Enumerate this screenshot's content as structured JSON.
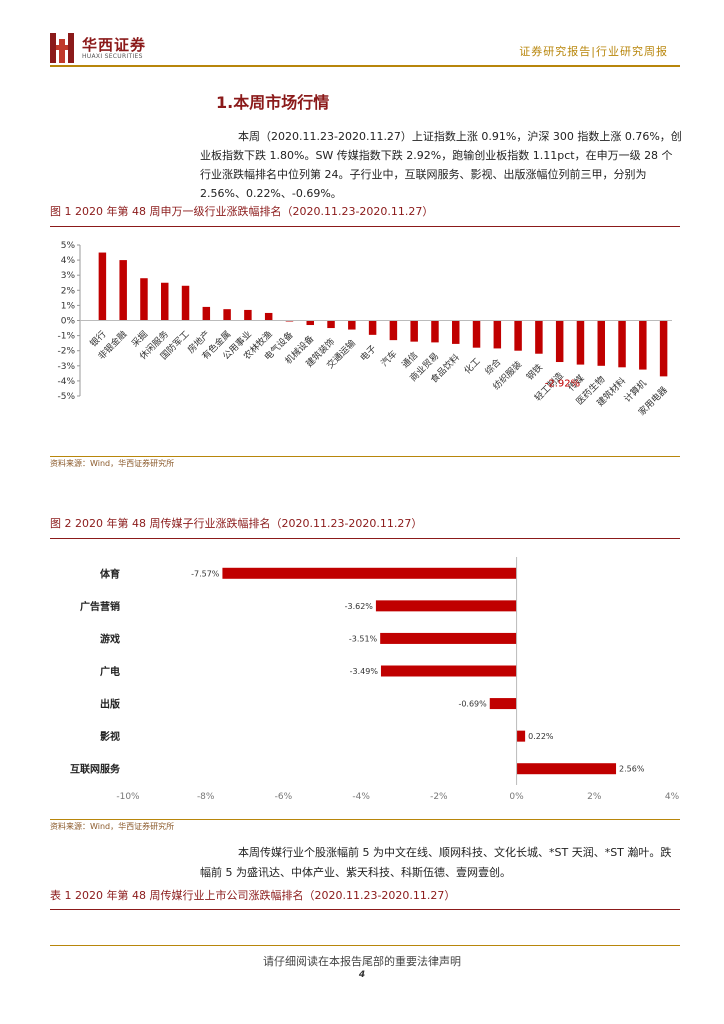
{
  "header": {
    "logo_cn": "华西证券",
    "logo_en": "HUAXI SECURITIES",
    "report_type": "证券研究报告|行业研究周报"
  },
  "section": {
    "title": "1.本周市场行情"
  },
  "intro": "本周（2020.11.23-2020.11.27）上证指数上涨 0.91%，沪深 300 指数上涨 0.76%，创业板指数下跌 1.80%。SW 传媒指数下跌 2.92%，跑输创业板指数 1.11pct，在申万一级 28 个行业涨跌幅排名中位列第 24。子行业中，互联网服务、影视、出版涨幅位列前三甲，分别为 2.56%、0.22%、-0.69%。",
  "figure1": {
    "title": "图 1 2020 年第 48 周申万一级行业涨跌幅排名（2020.11.23-2020.11.27）",
    "source": "资料来源：Wind，华西证券研究所"
  },
  "figure2": {
    "title": "图 2 2020 年第 48 周传媒子行业涨跌幅排名（2020.11.23-2020.11.27）",
    "source": "资料来源：Wind，华西证券研究所"
  },
  "para2": "本周传媒行业个股涨幅前 5 为中文在线、顺网科技、文化长城、*ST 天润、*ST 瀚叶。跌幅前 5 为盛讯达、中体产业、紫天科技、科斯伍德、壹网壹创。",
  "table1": {
    "title": "表 1 2020 年第 48 周传媒行业上市公司涨跌幅排名（2020.11.23-2020.11.27）"
  },
  "footer": {
    "note": "请仔细阅读在本报告尾部的重要法律声明",
    "page": "4"
  },
  "chart_data": [
    {
      "type": "bar",
      "title": "图 1 2020 年第 48 周申万一级行业涨跌幅排名（2020.11.23-2020.11.27）",
      "categories": [
        "银行",
        "非银金融",
        "采掘",
        "休闲服务",
        "国防军工",
        "房地产",
        "有色金属",
        "公用事业",
        "农林牧渔",
        "电气设备",
        "机械设备",
        "建筑装饰",
        "交通运输",
        "电子",
        "汽车",
        "通信",
        "商业贸易",
        "食品饮料",
        "化工",
        "综合",
        "纺织服装",
        "钢铁",
        "轻工制造",
        "传媒",
        "医药生物",
        "建筑材料",
        "计算机",
        "家用电器"
      ],
      "values": [
        4.5,
        4.0,
        2.8,
        2.5,
        2.3,
        0.9,
        0.75,
        0.7,
        0.5,
        -0.05,
        -0.3,
        -0.5,
        -0.6,
        -0.95,
        -1.3,
        -1.4,
        -1.45,
        -1.55,
        -1.8,
        -1.85,
        -2.0,
        -2.2,
        -2.75,
        -2.92,
        -3.0,
        -3.1,
        -3.25,
        -3.7
      ],
      "annotations": [
        {
          "category": "传媒",
          "label": "-2.92%"
        }
      ],
      "ylim": [
        -5,
        5
      ],
      "yticks": [
        "5%",
        "4%",
        "3%",
        "2%",
        "1%",
        "0%",
        "-1%",
        "-2%",
        "-3%",
        "-4%",
        "-5%"
      ],
      "color": "#C00000"
    },
    {
      "type": "bar",
      "orientation": "horizontal",
      "title": "图 2 2020 年第 48 周传媒子行业涨跌幅排名（2020.11.23-2020.11.27）",
      "categories": [
        "体育",
        "广告营销",
        "游戏",
        "广电",
        "出版",
        "影视",
        "互联网服务"
      ],
      "values": [
        -7.57,
        -3.62,
        -3.51,
        -3.49,
        -0.69,
        0.22,
        2.56
      ],
      "data_labels": [
        "-7.57%",
        "-3.62%",
        "-3.51%",
        "-3.49%",
        "-0.69%",
        "0.22%",
        "2.56%"
      ],
      "xlim": [
        -10,
        4
      ],
      "xticks": [
        "-10%",
        "-8%",
        "-6%",
        "-4%",
        "-2%",
        "0%",
        "2%",
        "4%"
      ],
      "color": "#C00000"
    }
  ]
}
